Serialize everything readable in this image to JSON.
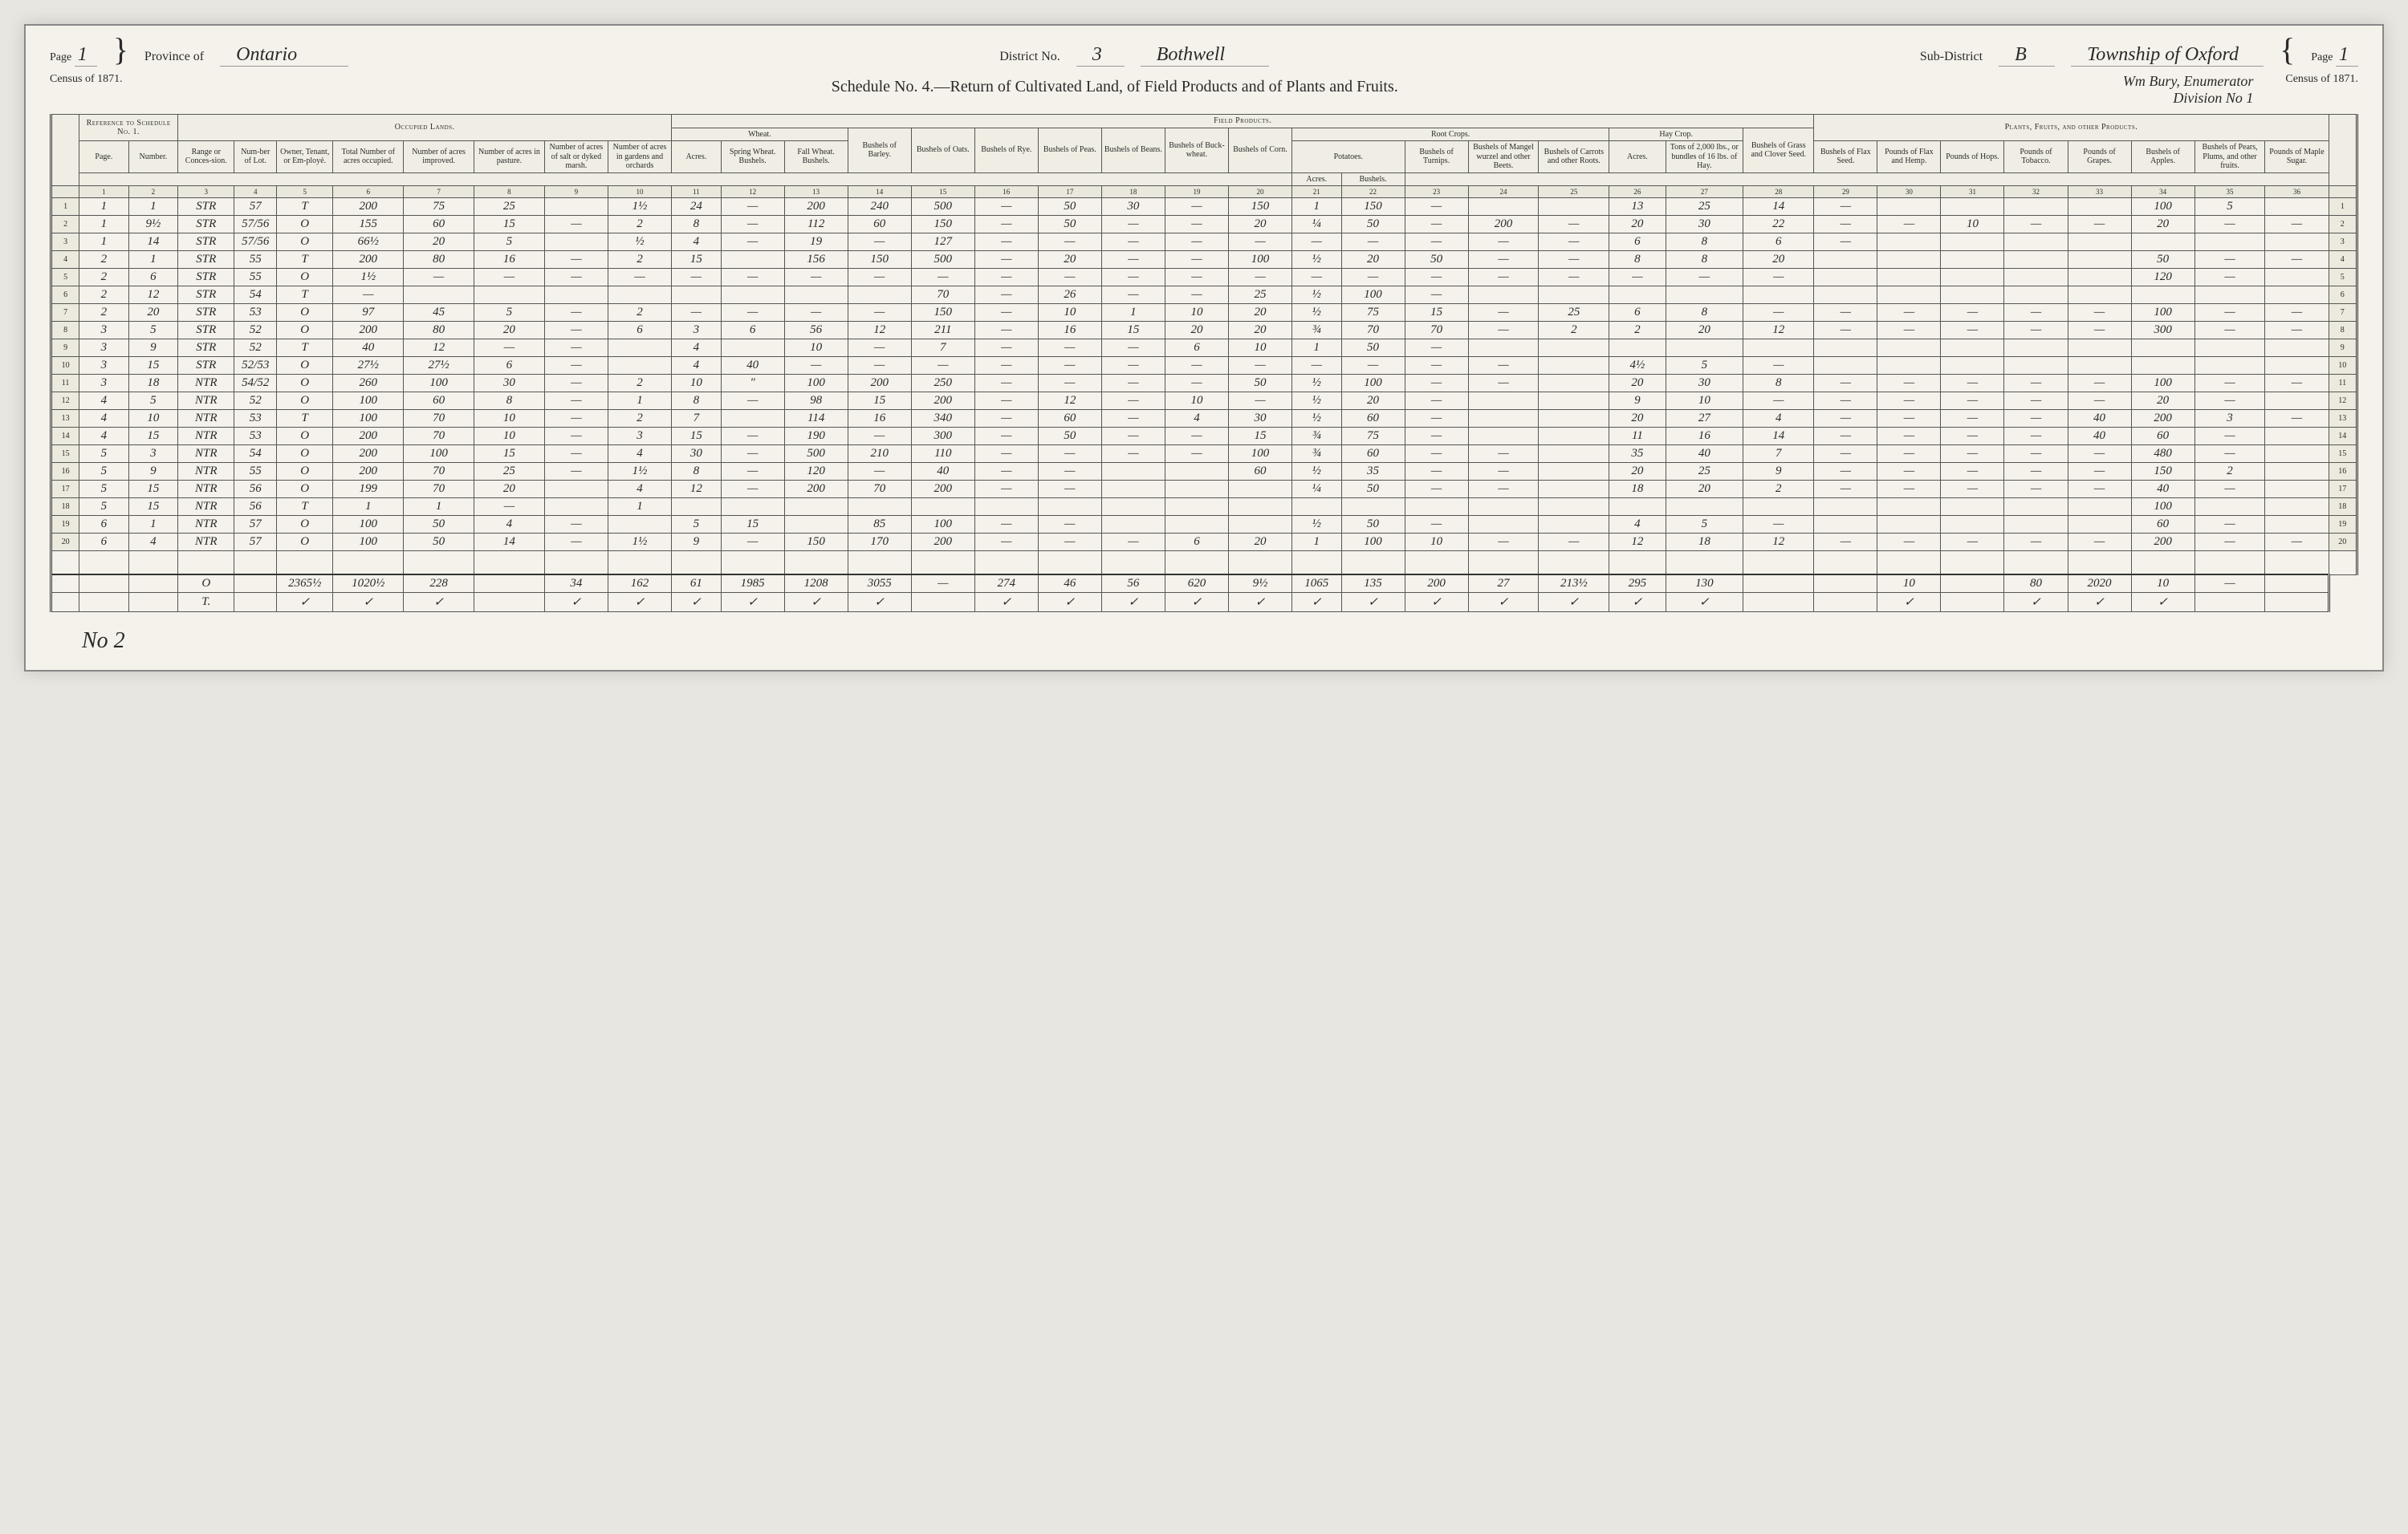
{
  "header": {
    "page_left_label": "Page",
    "page_left_value": "1",
    "census_label": "Census of 1871.",
    "province_label": "Province of",
    "province_value": "Ontario",
    "district_label": "District No.",
    "district_no": "3",
    "district_name": "Bothwell",
    "subdistrict_label": "Sub-District",
    "subdistrict_letter": "B",
    "subdistrict_name": "Township of Oxford",
    "enumerator": "Wm Bury, Enumerator",
    "division": "Division No 1",
    "page_right_label": "Page",
    "page_right_value": "1",
    "schedule_title": "Schedule No. 4.—Return of Cultivated Land, of Field Products and of Plants and Fruits."
  },
  "sections": {
    "ref": "Reference to Schedule No. 1.",
    "occupied": "Occupied Lands.",
    "field": "Field Products.",
    "plants": "Plants, Fruits, and other Products."
  },
  "subsections": {
    "wheat": "Wheat.",
    "root": "Root Crops.",
    "potatoes": "Potatoes.",
    "hay": "Hay Crop."
  },
  "columns": [
    "Page.",
    "Number.",
    "Range or Conces-sion.",
    "Num-ber of Lot.",
    "Owner, Tenant, or Em-ployé.",
    "Total Number of acres occupied.",
    "Number of acres improved.",
    "Number of acres in pasture.",
    "Number of acres of salt or dyked marsh.",
    "Number of acres in gardens and orchards",
    "Acres.",
    "Spring Wheat. Bushels.",
    "Fall Wheat. Bushels.",
    "Bushels of Barley.",
    "Bushels of Oats.",
    "Bushels of Rye.",
    "Bushels of Peas.",
    "Bushels of Beans.",
    "Bushels of Buck-wheat.",
    "Bushels of Corn.",
    "Acres.",
    "Bushels.",
    "Bushels of Turnips.",
    "Bushels of Mangel wurzel and other Beets.",
    "Bushels of Carrots and other Roots.",
    "Acres.",
    "Tons of 2,000 lbs., or bundles of 16 lbs. of Hay.",
    "Bushels of Grass and Clover Seed.",
    "Bushels of Flax Seed.",
    "Pounds of Flax and Hemp.",
    "Pounds of Hops.",
    "Pounds of Tobacco.",
    "Pounds of Grapes.",
    "Bushels of Apples.",
    "Bushels of Pears, Plums, and other fruits.",
    "Pounds of Maple Sugar."
  ],
  "colnums": [
    "1",
    "2",
    "3",
    "4",
    "5",
    "6",
    "7",
    "8",
    "9",
    "10",
    "11",
    "12",
    "13",
    "14",
    "15",
    "16",
    "17",
    "18",
    "19",
    "20",
    "21",
    "22",
    "23",
    "24",
    "25",
    "26",
    "27",
    "28",
    "29",
    "30",
    "31",
    "32",
    "33",
    "34",
    "35",
    "36"
  ],
  "rows": [
    [
      "1",
      "1",
      "STR",
      "57",
      "T",
      "200",
      "75",
      "25",
      "",
      "1½",
      "24",
      "—",
      "200",
      "240",
      "500",
      "—",
      "50",
      "30",
      "—",
      "150",
      "1",
      "150",
      "—",
      "",
      "",
      "13",
      "25",
      "14",
      "—",
      "",
      "",
      "",
      "",
      "100",
      "5",
      ""
    ],
    [
      "1",
      "9½",
      "STR",
      "57/56",
      "O",
      "155",
      "60",
      "15",
      "—",
      "2",
      "8",
      "—",
      "112",
      "60",
      "150",
      "—",
      "50",
      "—",
      "—",
      "20",
      "¼",
      "50",
      "—",
      "200",
      "—",
      "20",
      "30",
      "22",
      "—",
      "—",
      "10",
      "—",
      "—",
      "20",
      "—",
      "—"
    ],
    [
      "1",
      "14",
      "STR",
      "57/56",
      "O",
      "66½",
      "20",
      "5",
      "",
      "½",
      "4",
      "—",
      "19",
      "—",
      "127",
      "—",
      "—",
      "—",
      "—",
      "—",
      "—",
      "—",
      "—",
      "—",
      "—",
      "6",
      "8",
      "6",
      "—",
      "",
      "",
      "",
      "",
      "",
      "",
      ""
    ],
    [
      "2",
      "1",
      "STR",
      "55",
      "T",
      "200",
      "80",
      "16",
      "—",
      "2",
      "15",
      "",
      "156",
      "150",
      "500",
      "—",
      "20",
      "—",
      "—",
      "100",
      "½",
      "20",
      "50",
      "—",
      "—",
      "8",
      "8",
      "20",
      "",
      "",
      "",
      "",
      "",
      "50",
      "—",
      "—"
    ],
    [
      "2",
      "6",
      "STR",
      "55",
      "O",
      "1½",
      "—",
      "—",
      "—",
      "—",
      "—",
      "—",
      "—",
      "—",
      "—",
      "—",
      "—",
      "—",
      "—",
      "—",
      "—",
      "—",
      "—",
      "—",
      "—",
      "—",
      "—",
      "—",
      "",
      "",
      "",
      "",
      "",
      "120",
      "—",
      ""
    ],
    [
      "2",
      "12",
      "STR",
      "54",
      "T",
      "—",
      "",
      "",
      "",
      "",
      "",
      "",
      "",
      "",
      "70",
      "—",
      "26",
      "—",
      "—",
      "25",
      "½",
      "100",
      "—",
      "",
      "",
      "",
      "",
      "",
      "",
      "",
      "",
      "",
      "",
      "",
      "",
      ""
    ],
    [
      "2",
      "20",
      "STR",
      "53",
      "O",
      "97",
      "45",
      "5",
      "—",
      "2",
      "—",
      "—",
      "—",
      "—",
      "150",
      "—",
      "10",
      "1",
      "10",
      "20",
      "½",
      "75",
      "15",
      "—",
      "25",
      "6",
      "8",
      "—",
      "—",
      "—",
      "—",
      "—",
      "—",
      "100",
      "—",
      "—"
    ],
    [
      "3",
      "5",
      "STR",
      "52",
      "O",
      "200",
      "80",
      "20",
      "—",
      "6",
      "3",
      "6",
      "56",
      "12",
      "211",
      "—",
      "16",
      "15",
      "20",
      "20",
      "¾",
      "70",
      "70",
      "—",
      "2",
      "2",
      "20",
      "12",
      "—",
      "—",
      "—",
      "—",
      "—",
      "300",
      "—",
      "—"
    ],
    [
      "3",
      "9",
      "STR",
      "52",
      "T",
      "40",
      "12",
      "—",
      "—",
      "",
      "4",
      "",
      "10",
      "—",
      "7",
      "—",
      "—",
      "—",
      "6",
      "10",
      "1",
      "50",
      "—",
      "",
      "",
      "",
      "",
      "",
      "",
      "",
      "",
      "",
      "",
      "",
      "",
      ""
    ],
    [
      "3",
      "15",
      "STR",
      "52/53",
      "O",
      "27½",
      "27½",
      "6",
      "—",
      "",
      "4",
      "40",
      "—",
      "—",
      "—",
      "—",
      "—",
      "—",
      "—",
      "—",
      "—",
      "—",
      "—",
      "—",
      "",
      "4½",
      "5",
      "—",
      "",
      "",
      "",
      "",
      "",
      "",
      "",
      ""
    ],
    [
      "3",
      "18",
      "NTR",
      "54/52",
      "O",
      "260",
      "100",
      "30",
      "—",
      "2",
      "10",
      "\"",
      "100",
      "200",
      "250",
      "—",
      "—",
      "—",
      "—",
      "50",
      "½",
      "100",
      "—",
      "—",
      "",
      "20",
      "30",
      "8",
      "—",
      "—",
      "—",
      "—",
      "—",
      "100",
      "—",
      "—"
    ],
    [
      "4",
      "5",
      "NTR",
      "52",
      "O",
      "100",
      "60",
      "8",
      "—",
      "1",
      "8",
      "—",
      "98",
      "15",
      "200",
      "—",
      "12",
      "—",
      "10",
      "—",
      "½",
      "20",
      "—",
      "",
      "",
      "9",
      "10",
      "—",
      "—",
      "—",
      "—",
      "—",
      "—",
      "20",
      "—",
      ""
    ],
    [
      "4",
      "10",
      "NTR",
      "53",
      "T",
      "100",
      "70",
      "10",
      "—",
      "2",
      "7",
      "",
      "114",
      "16",
      "340",
      "—",
      "60",
      "—",
      "4",
      "30",
      "½",
      "60",
      "—",
      "",
      "",
      "20",
      "27",
      "4",
      "—",
      "—",
      "—",
      "—",
      "40",
      "200",
      "3",
      "—"
    ],
    [
      "4",
      "15",
      "NTR",
      "53",
      "O",
      "200",
      "70",
      "10",
      "—",
      "3",
      "15",
      "—",
      "190",
      "—",
      "300",
      "—",
      "50",
      "—",
      "—",
      "15",
      "¾",
      "75",
      "—",
      "",
      "",
      "11",
      "16",
      "14",
      "—",
      "—",
      "—",
      "—",
      "40",
      "60",
      "—",
      ""
    ],
    [
      "5",
      "3",
      "NTR",
      "54",
      "O",
      "200",
      "100",
      "15",
      "—",
      "4",
      "30",
      "—",
      "500",
      "210",
      "110",
      "—",
      "—",
      "—",
      "—",
      "100",
      "¾",
      "60",
      "—",
      "—",
      "",
      "35",
      "40",
      "7",
      "—",
      "—",
      "—",
      "—",
      "—",
      "480",
      "—",
      ""
    ],
    [
      "5",
      "9",
      "NTR",
      "55",
      "O",
      "200",
      "70",
      "25",
      "—",
      "1½",
      "8",
      "—",
      "120",
      "—",
      "40",
      "—",
      "—",
      "",
      "",
      "60",
      "½",
      "35",
      "—",
      "—",
      "",
      "20",
      "25",
      "9",
      "—",
      "—",
      "—",
      "—",
      "—",
      "150",
      "2",
      ""
    ],
    [
      "5",
      "15",
      "NTR",
      "56",
      "O",
      "199",
      "70",
      "20",
      "",
      "4",
      "12",
      "—",
      "200",
      "70",
      "200",
      "—",
      "—",
      "",
      "",
      "",
      "¼",
      "50",
      "—",
      "—",
      "",
      "18",
      "20",
      "2",
      "—",
      "—",
      "—",
      "—",
      "—",
      "40",
      "—",
      ""
    ],
    [
      "5",
      "15",
      "NTR",
      "56",
      "T",
      "1",
      "1",
      "—",
      "",
      "1",
      "",
      "",
      "",
      "",
      "",
      "",
      "",
      "",
      "",
      "",
      "",
      "",
      "",
      "",
      "",
      "",
      "",
      "",
      "",
      "",
      "",
      "",
      "",
      "100",
      "",
      ""
    ],
    [
      "6",
      "1",
      "NTR",
      "57",
      "O",
      "100",
      "50",
      "4",
      "—",
      "",
      "5",
      "15",
      "",
      "85",
      "100",
      "—",
      "—",
      "",
      "",
      "",
      "½",
      "50",
      "—",
      "",
      "",
      "4",
      "5",
      "—",
      "",
      "",
      "",
      "",
      "",
      "60",
      "—",
      ""
    ],
    [
      "6",
      "4",
      "NTR",
      "57",
      "O",
      "100",
      "50",
      "14",
      "—",
      "1½",
      "9",
      "—",
      "150",
      "170",
      "200",
      "—",
      "—",
      "—",
      "6",
      "20",
      "1",
      "100",
      "10",
      "—",
      "—",
      "12",
      "18",
      "12",
      "—",
      "—",
      "—",
      "—",
      "—",
      "200",
      "—",
      "—"
    ]
  ],
  "totals_label_o": "O",
  "totals_label_t": "T.",
  "totals": [
    "",
    "",
    "",
    "",
    "2365½",
    "1020½",
    "228",
    "",
    "34",
    "162",
    "61",
    "1985",
    "1208",
    "3055",
    "—",
    "274",
    "46",
    "56",
    "620",
    "9½",
    "1065",
    "135",
    "200",
    "27",
    "213½",
    "295",
    "130",
    "",
    "",
    "10",
    "",
    "80",
    "2020",
    "10",
    "—"
  ],
  "checkrow": [
    "",
    "",
    "",
    "",
    "✓",
    "✓",
    "✓",
    "",
    "✓",
    "✓",
    "✓",
    "✓",
    "✓",
    "✓",
    "",
    "✓",
    "✓",
    "✓",
    "✓",
    "✓",
    "✓",
    "✓",
    "✓",
    "✓",
    "✓",
    "✓",
    "✓",
    "",
    "",
    "✓",
    "",
    "✓",
    "✓",
    "✓",
    ""
  ],
  "footer_mark": "No 2"
}
